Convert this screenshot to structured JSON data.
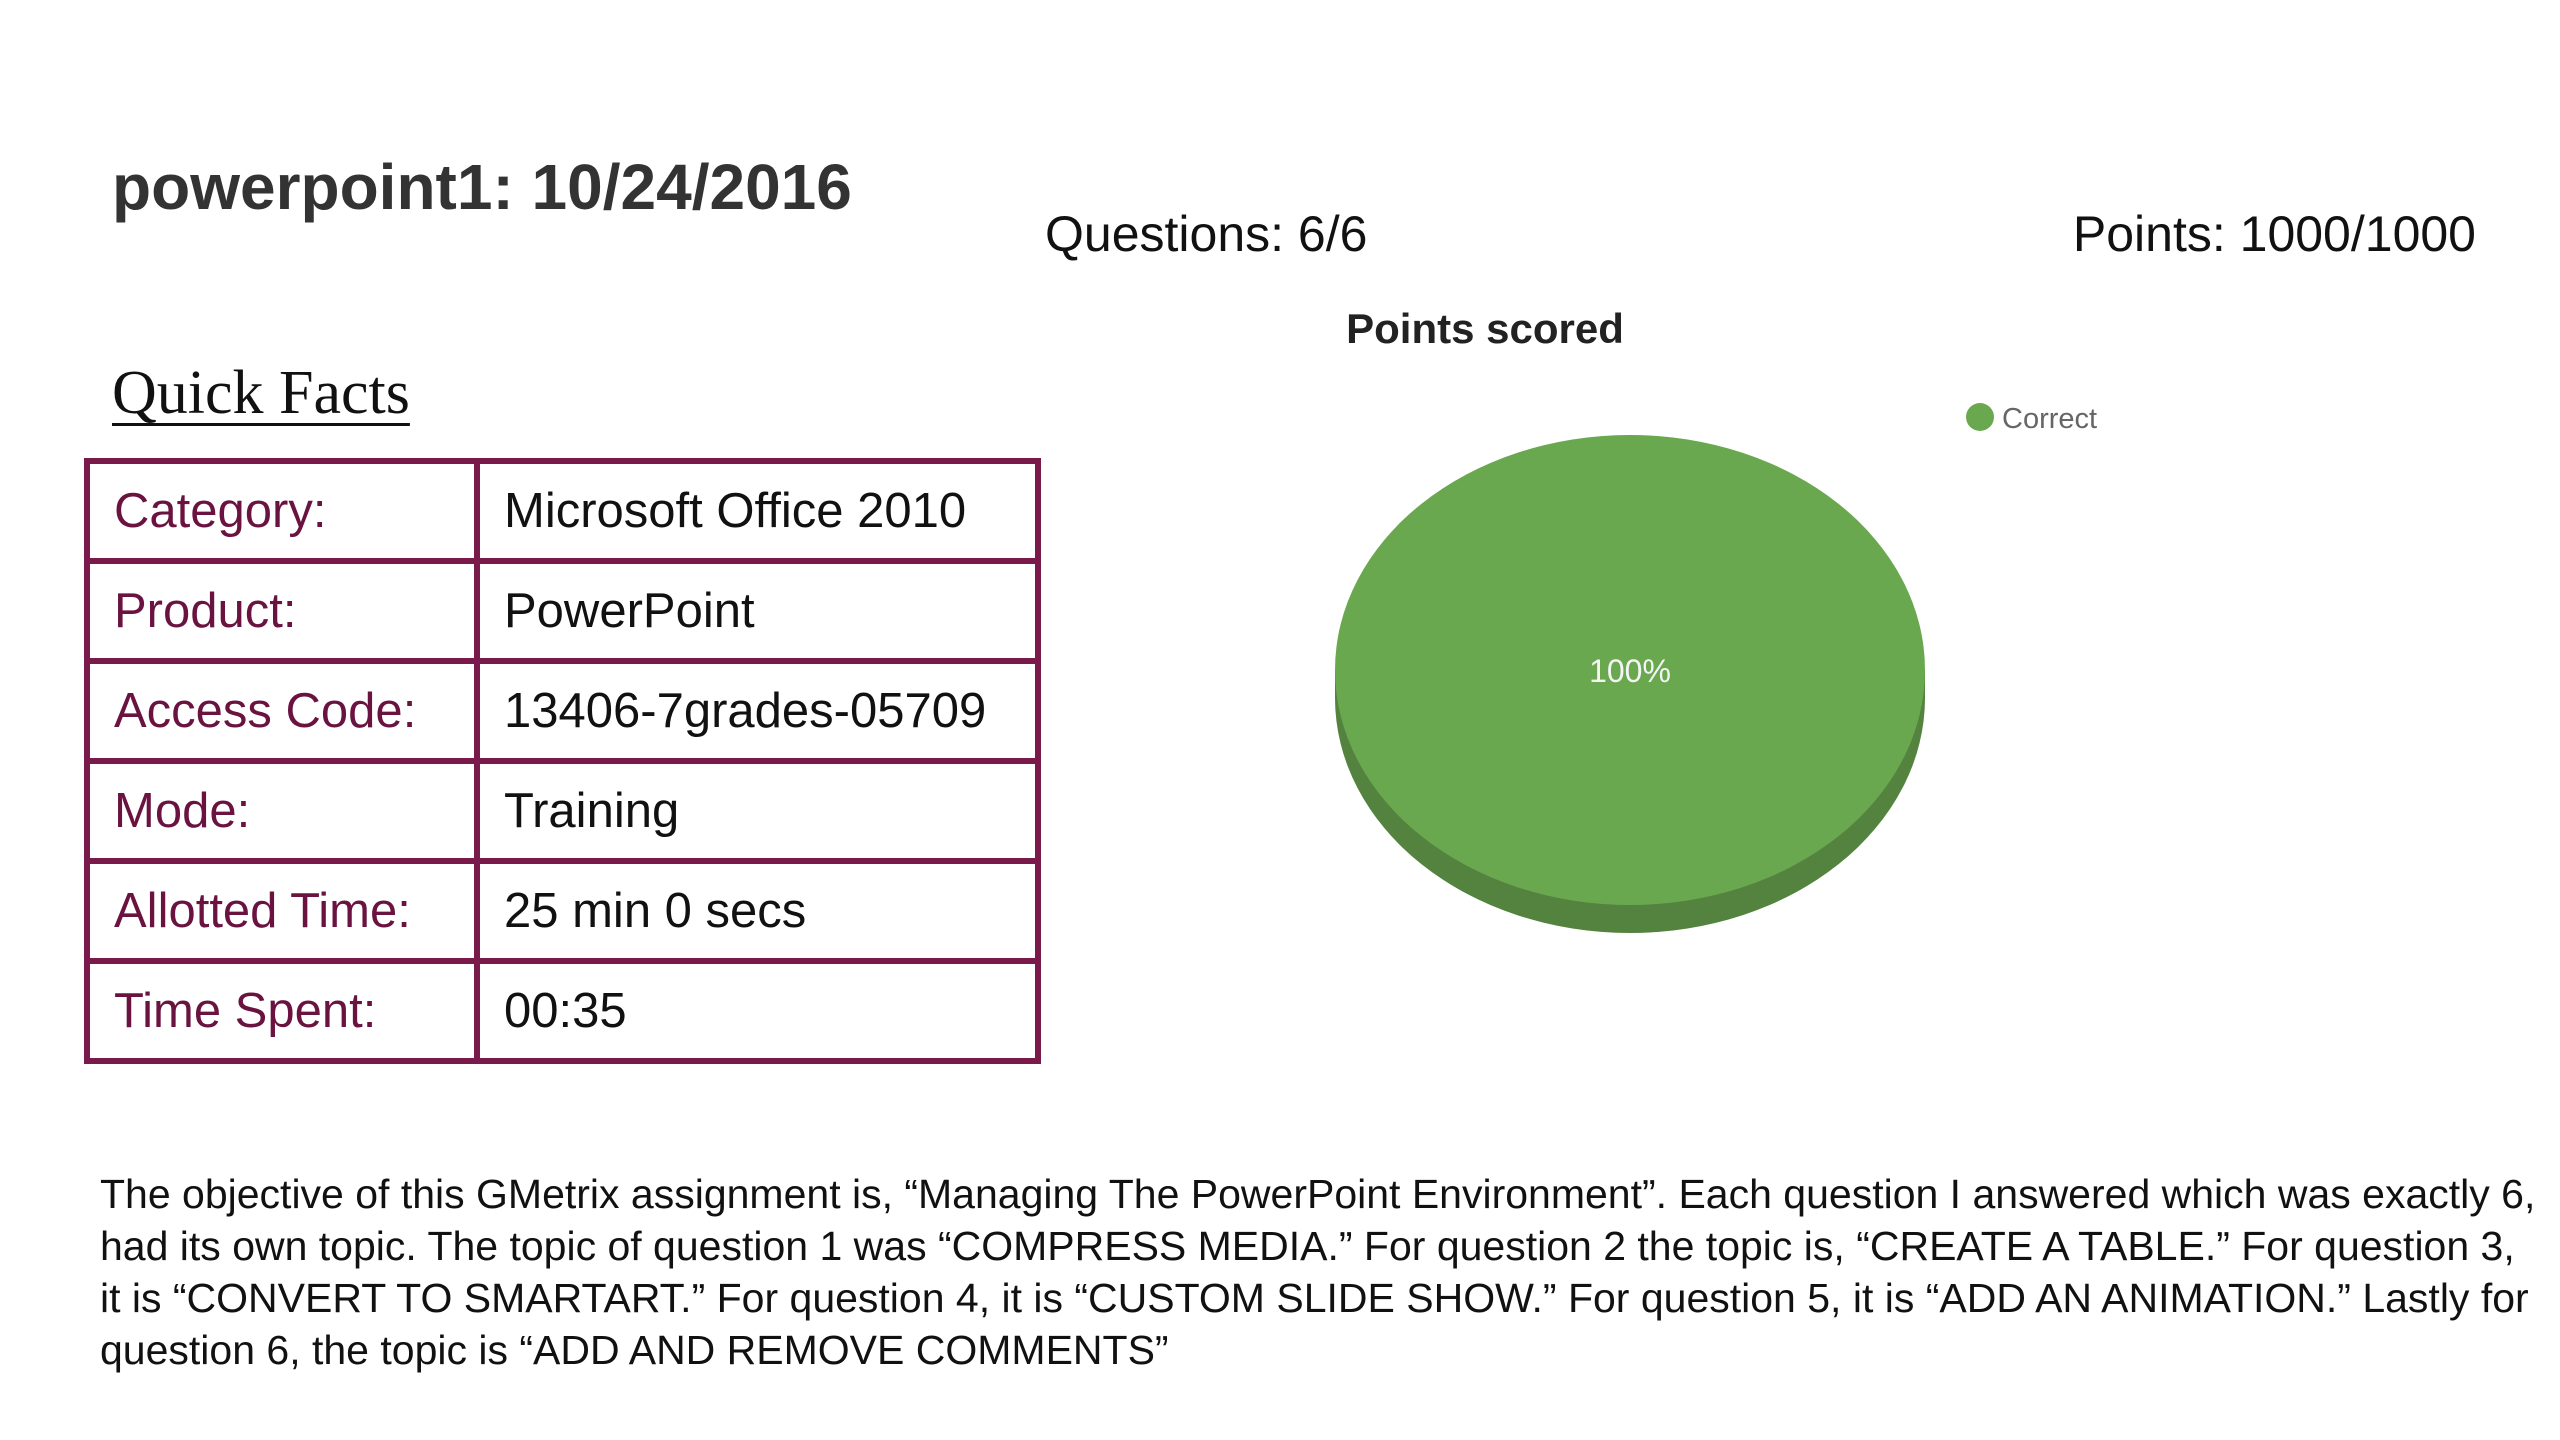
{
  "header": {
    "title": "powerpoint1: 10/24/2016",
    "questions": "Questions: 6/6",
    "points": "Points: 1000/1000"
  },
  "quick_facts": {
    "heading": "Quick Facts",
    "rows": [
      {
        "label": "Category:",
        "value": "Microsoft Office 2010"
      },
      {
        "label": "Product:",
        "value": "PowerPoint"
      },
      {
        "label": "Access Code:",
        "value": "13406-7grades-05709"
      },
      {
        "label": "Mode:",
        "value": "Training"
      },
      {
        "label": "Allotted Time:",
        "value": "25 min 0 secs"
      },
      {
        "label": "Time Spent:",
        "value": "00:35"
      }
    ],
    "border_color": "#7a1a4a"
  },
  "chart_data": {
    "type": "pie",
    "title": "Points scored",
    "categories": [
      "Correct"
    ],
    "values": [
      100
    ],
    "slice_labels": [
      "100%"
    ],
    "colors": [
      "#6aa84f"
    ],
    "legend_position": "top-right",
    "three_d": true
  },
  "description": "The objective of this GMetrix assignment is, “Managing The PowerPoint Environment”. Each question I answered which was exactly 6, had its own topic. The topic of question 1 was “COMPRESS MEDIA.” For question 2 the topic is, “CREATE A TABLE.” For question 3, it is “CONVERT TO SMARTART.” For question 4, it is “CUSTOM SLIDE SHOW.” For question 5, it is “ADD AN ANIMATION.” Lastly for question 6, the topic is “ADD AND REMOVE COMMENTS”"
}
